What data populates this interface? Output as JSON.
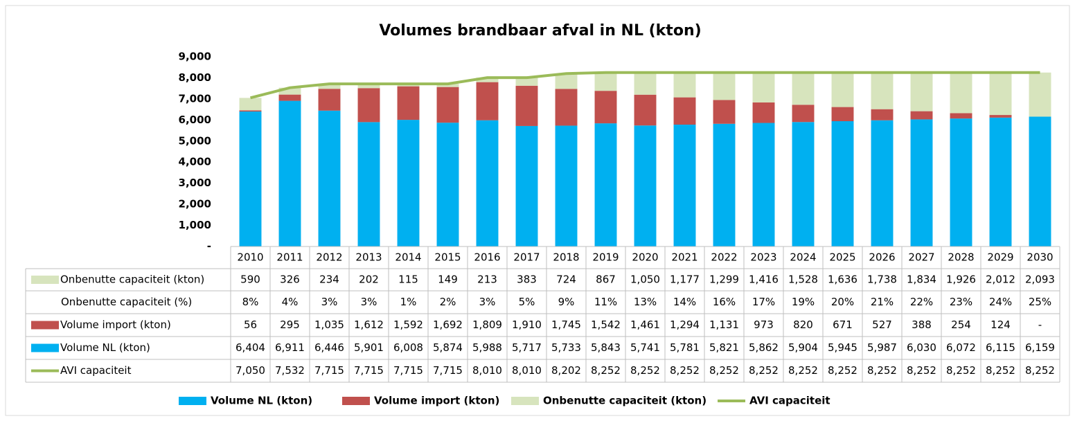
{
  "chart_data": {
    "type": "bar",
    "stacked": true,
    "title": "Volumes brandbaar afval in NL (kton)",
    "categories": [
      "2010",
      "2011",
      "2012",
      "2013",
      "2014",
      "2015",
      "2016",
      "2017",
      "2018",
      "2019",
      "2020",
      "2021",
      "2022",
      "2023",
      "2024",
      "2025",
      "2026",
      "2027",
      "2028",
      "2029",
      "2030"
    ],
    "ylim": [
      0,
      9000
    ],
    "yticks": [
      {
        "value": 0,
        "label": "-"
      },
      {
        "value": 1000,
        "label": "1,000"
      },
      {
        "value": 2000,
        "label": "2,000"
      },
      {
        "value": 3000,
        "label": "3,000"
      },
      {
        "value": 4000,
        "label": "4,000"
      },
      {
        "value": 5000,
        "label": "5,000"
      },
      {
        "value": 6000,
        "label": "6,000"
      },
      {
        "value": 7000,
        "label": "7,000"
      },
      {
        "value": 8000,
        "label": "8,000"
      },
      {
        "value": 9000,
        "label": "9,000"
      }
    ],
    "grid": false,
    "legend": "bottom",
    "series": [
      {
        "name": "Onbenutte capaciteit (kton)",
        "kind": "bar",
        "color": "#d7e4bd",
        "values": [
          590,
          326,
          234,
          202,
          115,
          149,
          213,
          383,
          724,
          867,
          1050,
          1177,
          1299,
          1416,
          1528,
          1636,
          1738,
          1834,
          1926,
          2012,
          2093
        ],
        "value_labels": [
          "590",
          "326",
          "234",
          "202",
          "115",
          "149",
          "213",
          "383",
          "724",
          "867",
          "1,050",
          "1,177",
          "1,299",
          "1,416",
          "1,528",
          "1,636",
          "1,738",
          "1,834",
          "1,926",
          "2,012",
          "2,093"
        ]
      },
      {
        "name": "Onbenutte capaciteit (%)",
        "values": [
          8,
          4,
          3,
          3,
          1,
          2,
          3,
          5,
          9,
          11,
          13,
          14,
          16,
          17,
          19,
          20,
          21,
          22,
          23,
          24,
          25
        ],
        "value_labels": [
          "8%",
          "4%",
          "3%",
          "3%",
          "1%",
          "2%",
          "3%",
          "5%",
          "9%",
          "11%",
          "13%",
          "14%",
          "16%",
          "17%",
          "19%",
          "20%",
          "21%",
          "22%",
          "23%",
          "24%",
          "25%"
        ]
      },
      {
        "name": "Volume import (kton)",
        "kind": "bar",
        "color": "#c0504d",
        "values": [
          56,
          295,
          1035,
          1612,
          1592,
          1692,
          1809,
          1910,
          1745,
          1542,
          1461,
          1294,
          1131,
          973,
          820,
          671,
          527,
          388,
          254,
          124,
          0
        ],
        "value_labels": [
          "56",
          "295",
          "1,035",
          "1,612",
          "1,592",
          "1,692",
          "1,809",
          "1,910",
          "1,745",
          "1,542",
          "1,461",
          "1,294",
          "1,131",
          "973",
          "820",
          "671",
          "527",
          "388",
          "254",
          "124",
          "-"
        ]
      },
      {
        "name": "Volume NL (kton)",
        "kind": "bar",
        "color": "#00b0f0",
        "values": [
          6404,
          6911,
          6446,
          5901,
          6008,
          5874,
          5988,
          5717,
          5733,
          5843,
          5741,
          5781,
          5821,
          5862,
          5904,
          5945,
          5987,
          6030,
          6072,
          6115,
          6159
        ],
        "value_labels": [
          "6,404",
          "6,911",
          "6,446",
          "5,901",
          "6,008",
          "5,874",
          "5,988",
          "5,717",
          "5,733",
          "5,843",
          "5,741",
          "5,781",
          "5,821",
          "5,862",
          "5,904",
          "5,945",
          "5,987",
          "6,030",
          "6,072",
          "6,115",
          "6,159"
        ]
      },
      {
        "name": "AVI capaciteit",
        "kind": "line",
        "color": "#9bbb59",
        "values": [
          7050,
          7532,
          7715,
          7715,
          7715,
          7715,
          8010,
          8010,
          8202,
          8252,
          8252,
          8252,
          8252,
          8252,
          8252,
          8252,
          8252,
          8252,
          8252,
          8252,
          8252
        ],
        "value_labels": [
          "7,050",
          "7,532",
          "7,715",
          "7,715",
          "7,715",
          "7,715",
          "8,010",
          "8,010",
          "8,202",
          "8,252",
          "8,252",
          "8,252",
          "8,252",
          "8,252",
          "8,252",
          "8,252",
          "8,252",
          "8,252",
          "8,252",
          "8,252",
          "8,252"
        ]
      }
    ]
  }
}
